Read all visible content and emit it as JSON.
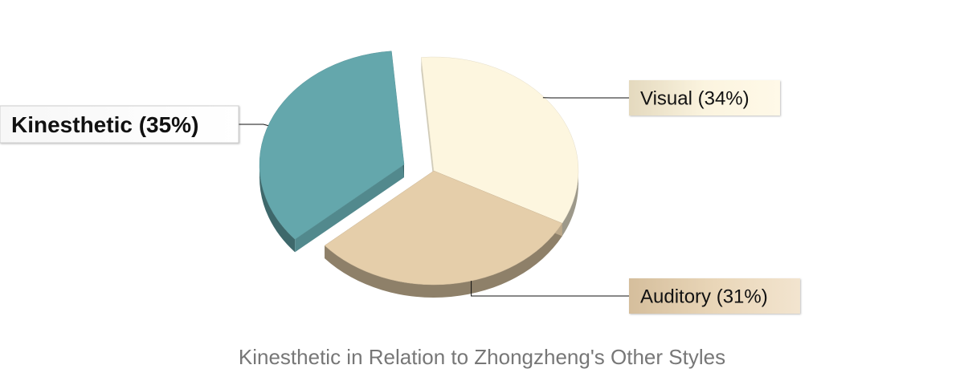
{
  "chart_data": {
    "type": "pie",
    "title": "Kinesthetic in Relation to Zhongzheng's Other Styles",
    "slices": [
      {
        "label": "Visual",
        "value": 34,
        "display": "Visual (34%)",
        "color": "#FDF6DF",
        "emphasized": false,
        "exploded": false
      },
      {
        "label": "Auditory",
        "value": 31,
        "display": "Auditory (31%)",
        "color": "#E5CEAA",
        "emphasized": false,
        "exploded": false
      },
      {
        "label": "Kinesthetic",
        "value": 35,
        "display": "Kinesthetic (35%)",
        "color": "#64A7AC",
        "emphasized": true,
        "exploded": true
      }
    ],
    "legend": "none",
    "style": "3d-pie"
  }
}
